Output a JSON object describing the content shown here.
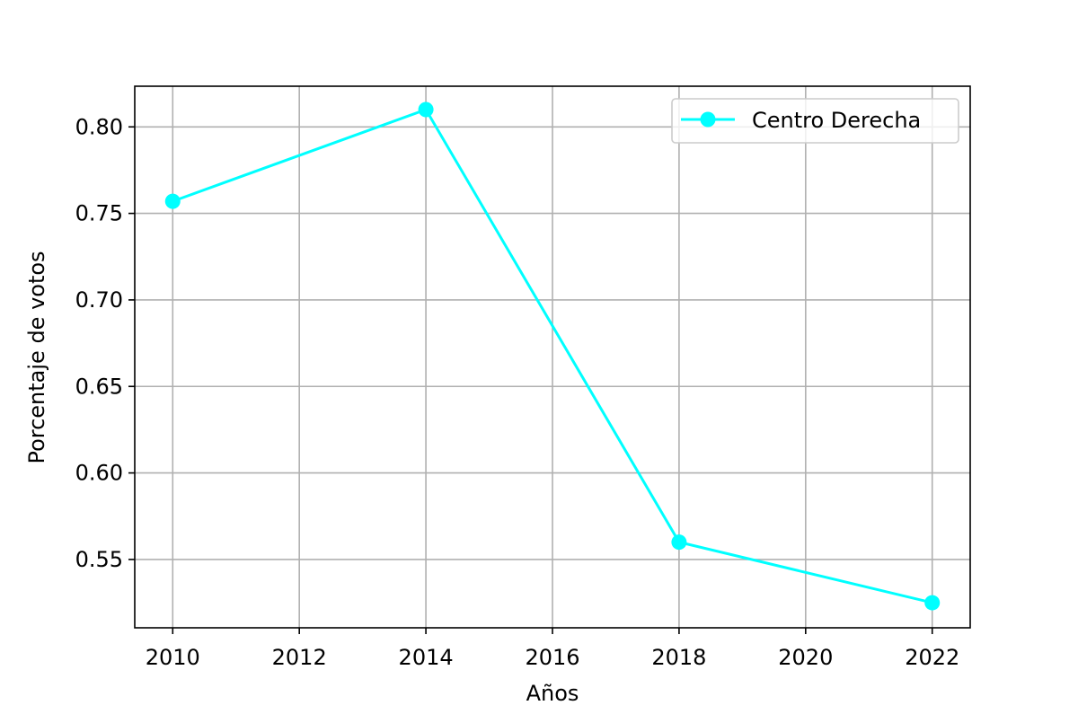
{
  "chart_data": {
    "type": "line",
    "title": "",
    "xlabel": "Años",
    "ylabel": "Porcentaje de votos",
    "x": [
      2010,
      2014,
      2018,
      2022
    ],
    "series": [
      {
        "name": "Centro Derecha",
        "color": "#00ffff",
        "marker": "circle",
        "values": [
          0.757,
          0.81,
          0.56,
          0.525
        ]
      }
    ],
    "xlim": [
      2009.4,
      2022.6
    ],
    "ylim": [
      0.5105,
      0.8235
    ],
    "xticks": [
      2010,
      2012,
      2014,
      2016,
      2018,
      2020,
      2022
    ],
    "xtick_labels": [
      "2010",
      "2012",
      "2014",
      "2016",
      "2018",
      "2020",
      "2022"
    ],
    "yticks": [
      0.55,
      0.6,
      0.65,
      0.7,
      0.75,
      0.8
    ],
    "ytick_labels": [
      "0.55",
      "0.60",
      "0.65",
      "0.70",
      "0.75",
      "0.80"
    ],
    "grid": true,
    "grid_color": "#b0b0b0",
    "legend_position": "upper right"
  }
}
